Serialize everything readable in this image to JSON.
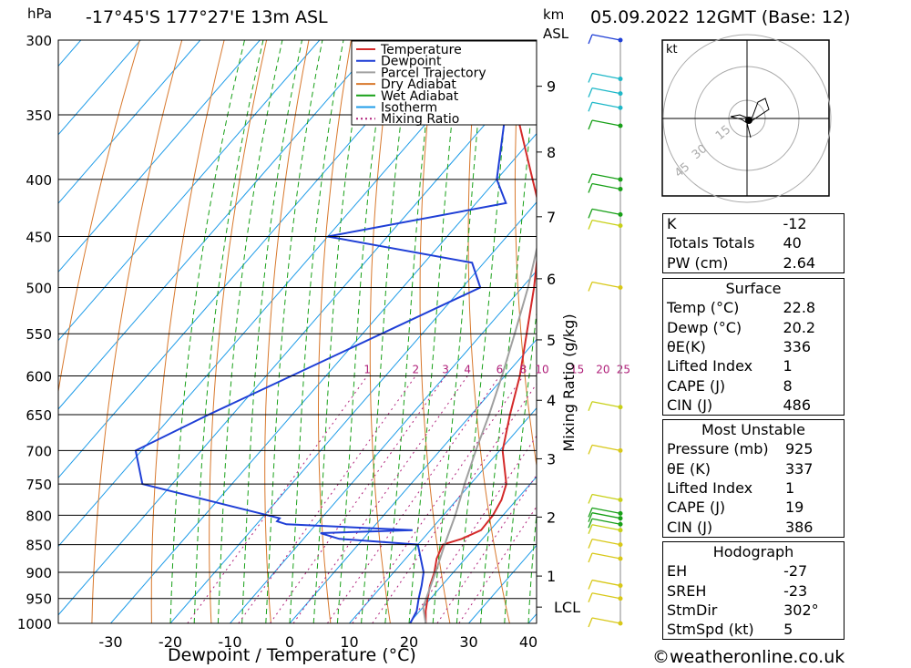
{
  "header": {
    "location": "-17°45'S 177°27'E 13m ASL",
    "date": "05.09.2022 12GMT (Base: 12)",
    "pressure_unit": "hPa",
    "km_unit": "km",
    "asl": "ASL"
  },
  "chart_data": {
    "type": "line",
    "title": "-17°45'S 177°27'E 13m ASL",
    "xlabel": "Dewpoint / Temperature (°C)",
    "ylabel": "hPa",
    "xlim": [
      -40,
      40
    ],
    "ylim": [
      1000,
      300
    ],
    "y_scale": "log",
    "skew": "skew-T",
    "grid": true,
    "legend_position": "top-right",
    "x_ticks": [
      "-30",
      "-20",
      "-10",
      "0",
      "10",
      "20",
      "30",
      "40"
    ],
    "pressure_levels": [
      300,
      350,
      400,
      450,
      500,
      550,
      600,
      650,
      700,
      750,
      800,
      850,
      900,
      950,
      1000
    ],
    "height_km_labels": [
      {
        "km": "1",
        "p": 907
      },
      {
        "km": "2",
        "p": 803
      },
      {
        "km": "3",
        "p": 712
      },
      {
        "km": "4",
        "p": 631
      },
      {
        "km": "5",
        "p": 557
      },
      {
        "km": "6",
        "p": 491
      },
      {
        "km": "7",
        "p": 432
      },
      {
        "km": "8",
        "p": 378
      },
      {
        "km": "9",
        "p": 330
      },
      {
        "km": "LCL",
        "p": 967
      }
    ],
    "mixing_ratio_label": "Mixing Ratio (g/kg)",
    "mixing_ratio_values": [
      "1",
      "2",
      "3",
      "4",
      "6",
      "8",
      "10",
      "15",
      "20",
      "25"
    ],
    "legend": [
      "Temperature",
      "Dewpoint",
      "Parcel Trajectory",
      "Dry Adiabat",
      "Wet Adiabat",
      "Isotherm",
      "Mixing Ratio"
    ],
    "colors": {
      "temperature": "#d42a2a",
      "dewpoint": "#1f3fd6",
      "parcel": "#a0a0a0",
      "dry_adiabat": "#d8782c",
      "wet_adiabat": "#18a018",
      "isotherm": "#1f9ce8",
      "mixing_ratio": "#b0207a"
    },
    "series": [
      {
        "name": "Temperature",
        "points": [
          {
            "p": 1000,
            "t": 22.8
          },
          {
            "p": 975,
            "t": 21.0
          },
          {
            "p": 950,
            "t": 19.5
          },
          {
            "p": 925,
            "t": 18.0
          },
          {
            "p": 900,
            "t": 16.8
          },
          {
            "p": 875,
            "t": 15.2
          },
          {
            "p": 850,
            "t": 14.2
          },
          {
            "p": 840,
            "t": 16.5
          },
          {
            "p": 825,
            "t": 18.5
          },
          {
            "p": 800,
            "t": 18.3
          },
          {
            "p": 775,
            "t": 17.5
          },
          {
            "p": 750,
            "t": 16.0
          },
          {
            "p": 700,
            "t": 10.5
          },
          {
            "p": 650,
            "t": 6.5
          },
          {
            "p": 600,
            "t": 2.5
          },
          {
            "p": 550,
            "t": -2.5
          },
          {
            "p": 500,
            "t": -8.0
          },
          {
            "p": 450,
            "t": -14.5
          },
          {
            "p": 425,
            "t": -18.5
          },
          {
            "p": 400,
            "t": -24.0
          },
          {
            "p": 350,
            "t": -36.0
          },
          {
            "p": 340,
            "t": -37.0
          },
          {
            "p": 325,
            "t": -38.0
          },
          {
            "p": 310,
            "t": -41.0
          },
          {
            "p": 300,
            "t": -42.5
          }
        ]
      },
      {
        "name": "Dewpoint",
        "points": [
          {
            "p": 1000,
            "t": 20.2
          },
          {
            "p": 975,
            "t": 19.5
          },
          {
            "p": 950,
            "t": 18.0
          },
          {
            "p": 925,
            "t": 16.6
          },
          {
            "p": 900,
            "t": 15.0
          },
          {
            "p": 850,
            "t": 10.0
          },
          {
            "p": 840,
            "t": -4.0
          },
          {
            "p": 830,
            "t": -8.0
          },
          {
            "p": 825,
            "t": 7.0
          },
          {
            "p": 815,
            "t": -15.0
          },
          {
            "p": 810,
            "t": -17.0
          },
          {
            "p": 805,
            "t": -17.0
          },
          {
            "p": 750,
            "t": -45.0
          },
          {
            "p": 700,
            "t": -51.0
          },
          {
            "p": 650,
            "t": -44.0
          },
          {
            "p": 500,
            "t": -17.0
          },
          {
            "p": 475,
            "t": -22.0
          },
          {
            "p": 450,
            "t": -50.0
          },
          {
            "p": 420,
            "t": -25.0
          },
          {
            "p": 400,
            "t": -30.0
          },
          {
            "p": 350,
            "t": -38.0
          },
          {
            "p": 340,
            "t": -44.0
          },
          {
            "p": 330,
            "t": -60.0
          },
          {
            "p": 320,
            "t": -60.0
          },
          {
            "p": 310,
            "t": -56.0
          },
          {
            "p": 300,
            "t": -65.0
          }
        ]
      },
      {
        "name": "Parcel Trajectory",
        "points": [
          {
            "p": 1000,
            "t": 22.8
          },
          {
            "p": 967,
            "t": 20.0
          },
          {
            "p": 900,
            "t": 17.0
          },
          {
            "p": 850,
            "t": 14.5
          },
          {
            "p": 800,
            "t": 12.0
          },
          {
            "p": 750,
            "t": 9.0
          },
          {
            "p": 700,
            "t": 6.0
          },
          {
            "p": 650,
            "t": 3.0
          },
          {
            "p": 600,
            "t": -0.5
          },
          {
            "p": 550,
            "t": -4.5
          },
          {
            "p": 500,
            "t": -9.0
          },
          {
            "p": 450,
            "t": -14.5
          },
          {
            "p": 400,
            "t": -21.0
          },
          {
            "p": 350,
            "t": -30.0
          },
          {
            "p": 320,
            "t": -36.0
          },
          {
            "p": 310,
            "t": -38.5
          }
        ]
      }
    ],
    "wind_barbs": [
      {
        "p": 300,
        "color": "#1f3fd6"
      },
      {
        "p": 325,
        "color": "#1fb8c8"
      },
      {
        "p": 335,
        "color": "#1fb8c8"
      },
      {
        "p": 345,
        "color": "#1fb8c8"
      },
      {
        "p": 358,
        "color": "#18a018"
      },
      {
        "p": 400,
        "color": "#18a018"
      },
      {
        "p": 408,
        "color": "#18a018"
      },
      {
        "p": 430,
        "color": "#18a018"
      },
      {
        "p": 440,
        "color": "#c8d018"
      },
      {
        "p": 500,
        "color": "#d8c818"
      },
      {
        "p": 640,
        "color": "#c8d018"
      },
      {
        "p": 700,
        "color": "#d8c818"
      },
      {
        "p": 775,
        "color": "#c8d018"
      },
      {
        "p": 797,
        "color": "#18a018"
      },
      {
        "p": 805,
        "color": "#18a018"
      },
      {
        "p": 815,
        "color": "#18a018"
      },
      {
        "p": 825,
        "color": "#c8d018"
      },
      {
        "p": 850,
        "color": "#d8c818"
      },
      {
        "p": 875,
        "color": "#d8c818"
      },
      {
        "p": 925,
        "color": "#d8c818"
      },
      {
        "p": 950,
        "color": "#d8c818"
      },
      {
        "p": 1000,
        "color": "#d8c818"
      }
    ]
  },
  "hodograph": {
    "unit_label": "kt",
    "ring_labels": [
      "15",
      "30",
      "45"
    ]
  },
  "indices": {
    "k_label": "K",
    "k_value": "-12",
    "tt_label": "Totals Totals",
    "tt_value": "40",
    "pw_label": "PW (cm)",
    "pw_value": "2.64"
  },
  "surface": {
    "heading": "Surface",
    "temp_label": "Temp (°C)",
    "temp_value": "22.8",
    "dewp_label": "Dewp (°C)",
    "dewp_value": "20.2",
    "theta_label": "θE(K)",
    "theta_value": "336",
    "li_label": "Lifted Index",
    "li_value": "1",
    "cape_label": "CAPE (J)",
    "cape_value": "8",
    "cin_label": "CIN (J)",
    "cin_value": "486"
  },
  "most_unstable": {
    "heading": "Most Unstable",
    "pressure_label": "Pressure (mb)",
    "pressure_value": "925",
    "theta_label": "θE (K)",
    "theta_value": "337",
    "li_label": "Lifted Index",
    "li_value": "1",
    "cape_label": "CAPE (J)",
    "cape_value": "19",
    "cin_label": "CIN (J)",
    "cin_value": "386"
  },
  "hodograph_table": {
    "heading": "Hodograph",
    "eh_label": "EH",
    "eh_value": "-27",
    "sreh_label": "SREH",
    "sreh_value": "-23",
    "stmdir_label": "StmDir",
    "stmdir_value": "302°",
    "stmspd_label": "StmSpd (kt)",
    "stmspd_value": "5"
  },
  "footer": {
    "copyright": "©weatheronline.co.uk"
  }
}
